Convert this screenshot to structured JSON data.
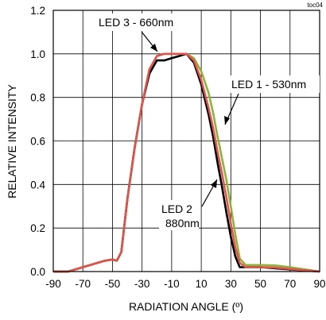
{
  "chart_data": {
    "type": "line",
    "corner_label": "toc04",
    "xlabel": "RADIATION ANGLE (º)",
    "ylabel": "RELATIVE INTENSITY",
    "xlim": [
      -90,
      90
    ],
    "ylim": [
      0,
      1.2
    ],
    "x_ticks": [
      -90,
      -70,
      -50,
      -30,
      -10,
      10,
      30,
      50,
      70,
      90
    ],
    "x_tick_labels": [
      "-90",
      "-70",
      "-50",
      "-30",
      "-10",
      "10",
      "30",
      "50",
      "70",
      "90"
    ],
    "y_ticks": [
      0,
      0.2,
      0.4,
      0.6,
      0.8,
      1.0,
      1.2
    ],
    "y_tick_labels": [
      "0.0",
      "0.2",
      "0.4",
      "0.6",
      "0.8",
      "1.0",
      "1.2"
    ],
    "grid": true,
    "series": [
      {
        "name": "LED 1 - 530nm",
        "color": "#8db33b",
        "x": [
          -90,
          -80,
          -70,
          -60,
          -55,
          -50,
          -47,
          -44,
          -40,
          -35,
          -30,
          -25,
          -20,
          -15,
          -10,
          -5,
          0,
          5,
          10,
          15,
          18,
          21,
          24,
          27,
          30,
          33,
          36,
          40,
          45,
          50,
          60,
          70,
          80,
          90
        ],
        "y": [
          0.0,
          0.0,
          0.02,
          0.04,
          0.05,
          0.055,
          0.05,
          0.09,
          0.33,
          0.57,
          0.77,
          0.93,
          0.99,
          1.0,
          1.0,
          1.0,
          1.0,
          0.98,
          0.92,
          0.82,
          0.73,
          0.62,
          0.52,
          0.42,
          0.3,
          0.17,
          0.06,
          0.03,
          0.03,
          0.03,
          0.028,
          0.02,
          0.01,
          0.0
        ]
      },
      {
        "name": "LED 2 - 880nm",
        "color": "#000000",
        "x": [
          -90,
          -80,
          -70,
          -60,
          -55,
          -50,
          -47,
          -44,
          -40,
          -35,
          -30,
          -25,
          -20,
          -15,
          -10,
          -5,
          0,
          5,
          10,
          15,
          18,
          21,
          24,
          27,
          30,
          33,
          36,
          40,
          45,
          50,
          60,
          70,
          80,
          90
        ],
        "y": [
          0.0,
          0.0,
          0.02,
          0.04,
          0.05,
          0.055,
          0.05,
          0.09,
          0.33,
          0.57,
          0.77,
          0.91,
          0.97,
          0.97,
          0.98,
          0.99,
          1.0,
          0.96,
          0.86,
          0.72,
          0.62,
          0.5,
          0.39,
          0.27,
          0.16,
          0.07,
          0.02,
          0.02,
          0.02,
          0.02,
          0.015,
          0.01,
          0.005,
          0.0
        ]
      },
      {
        "name": "LED 3 - 660nm",
        "color": "#e0544d",
        "x": [
          -90,
          -80,
          -70,
          -60,
          -55,
          -50,
          -47,
          -44,
          -40,
          -35,
          -30,
          -25,
          -20,
          -15,
          -10,
          -5,
          0,
          5,
          10,
          15,
          18,
          21,
          24,
          27,
          30,
          33,
          36,
          40,
          45,
          50,
          60,
          70,
          80,
          90
        ],
        "y": [
          0.0,
          0.0,
          0.02,
          0.04,
          0.05,
          0.055,
          0.05,
          0.09,
          0.33,
          0.57,
          0.77,
          0.93,
          0.99,
          1.0,
          1.0,
          1.0,
          1.0,
          0.97,
          0.88,
          0.75,
          0.66,
          0.55,
          0.45,
          0.34,
          0.22,
          0.11,
          0.04,
          0.02,
          0.02,
          0.02,
          0.018,
          0.012,
          0.006,
          0.0
        ]
      }
    ],
    "annotations": [
      {
        "text": "LED 3 - 660nm",
        "lines": [
          "LED 3 - 660nm"
        ]
      },
      {
        "text": "LED 1 - 530nm",
        "lines": [
          "LED 1 - 530nm"
        ]
      },
      {
        "text": "LED 2 880nm",
        "lines": [
          "LED 2",
          "880nm"
        ]
      }
    ]
  }
}
